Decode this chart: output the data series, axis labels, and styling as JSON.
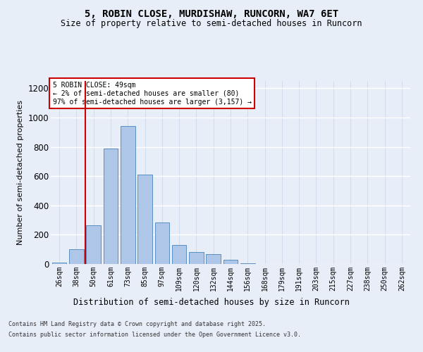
{
  "title1": "5, ROBIN CLOSE, MURDISHAW, RUNCORN, WA7 6ET",
  "title2": "Size of property relative to semi-detached houses in Runcorn",
  "xlabel": "Distribution of semi-detached houses by size in Runcorn",
  "ylabel": "Number of semi-detached properties",
  "annotation_title": "5 ROBIN CLOSE: 49sqm",
  "annotation_line1": "← 2% of semi-detached houses are smaller (80)",
  "annotation_line2": "97% of semi-detached houses are larger (3,157) →",
  "categories": [
    "26sqm",
    "38sqm",
    "50sqm",
    "61sqm",
    "73sqm",
    "85sqm",
    "97sqm",
    "109sqm",
    "120sqm",
    "132sqm",
    "144sqm",
    "156sqm",
    "168sqm",
    "179sqm",
    "191sqm",
    "203sqm",
    "215sqm",
    "227sqm",
    "238sqm",
    "250sqm",
    "262sqm"
  ],
  "values": [
    10,
    100,
    265,
    790,
    940,
    610,
    285,
    130,
    80,
    65,
    30,
    5,
    0,
    0,
    0,
    0,
    0,
    0,
    0,
    0,
    0
  ],
  "bar_color": "#aec6e8",
  "bar_edge_color": "#5a8fc0",
  "vline_x": 1.5,
  "vline_color": "#cc0000",
  "annotation_box_color": "#cc0000",
  "ylim": [
    0,
    1250
  ],
  "yticks": [
    0,
    200,
    400,
    600,
    800,
    1000,
    1200
  ],
  "footer1": "Contains HM Land Registry data © Crown copyright and database right 2025.",
  "footer2": "Contains public sector information licensed under the Open Government Licence v3.0.",
  "bg_color": "#e8eef8",
  "plot_bg_color": "#e8eef8"
}
